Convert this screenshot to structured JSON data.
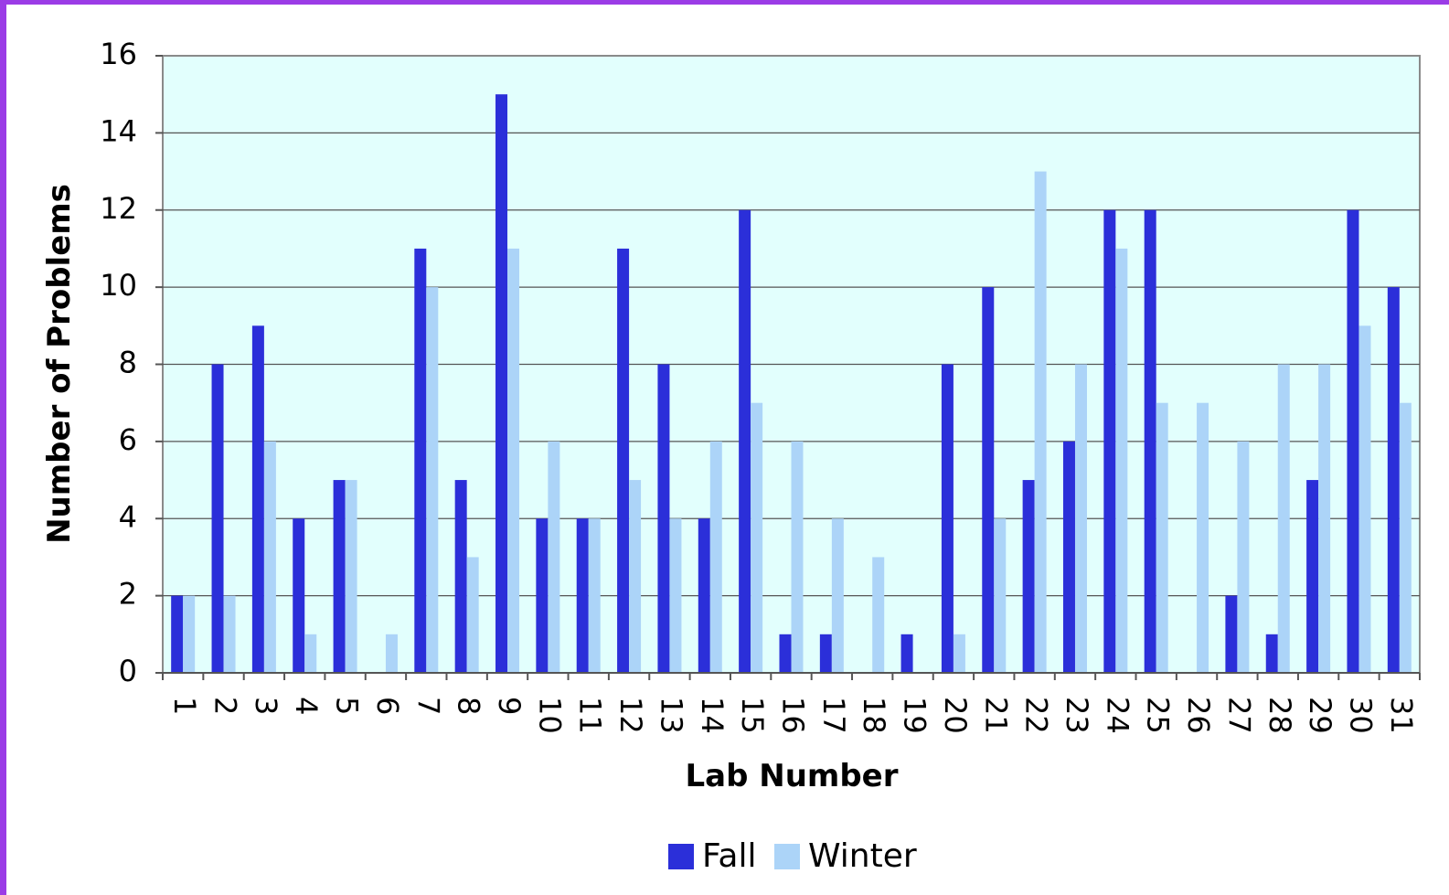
{
  "chart_data": {
    "type": "bar",
    "x_label": "Lab Number",
    "y_label": "Number of Problems",
    "categories": [
      "1",
      "2",
      "3",
      "4",
      "5",
      "6",
      "7",
      "8",
      "9",
      "10",
      "11",
      "12",
      "13",
      "14",
      "15",
      "16",
      "17",
      "18",
      "19",
      "20",
      "21",
      "22",
      "23",
      "24",
      "25",
      "26",
      "27",
      "28",
      "29",
      "30",
      "31"
    ],
    "series": [
      {
        "name": "Fall",
        "color": "#2b2fd9",
        "values": [
          2,
          8,
          9,
          4,
          5,
          0,
          11,
          5,
          15,
          4,
          4,
          11,
          8,
          4,
          12,
          1,
          1,
          0,
          1,
          8,
          10,
          5,
          6,
          12,
          12,
          0,
          2,
          1,
          5,
          12,
          10
        ]
      },
      {
        "name": "Winter",
        "color": "#acd4f8",
        "values": [
          2,
          2,
          6,
          1,
          5,
          1,
          10,
          3,
          11,
          6,
          4,
          5,
          4,
          6,
          7,
          6,
          4,
          3,
          0,
          1,
          4,
          13,
          8,
          11,
          7,
          7,
          6,
          8,
          8,
          9,
          7
        ]
      }
    ],
    "ylim": [
      0,
      16
    ],
    "yticks": [
      0,
      2,
      4,
      6,
      8,
      10,
      12,
      14,
      16
    ],
    "grid": true,
    "legend": "bottom"
  }
}
